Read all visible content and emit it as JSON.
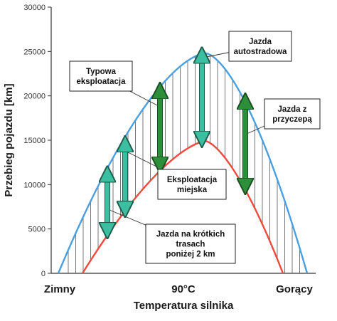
{
  "chart_data": {
    "type": "line",
    "ylabel": "Przebieg pojazdu [km]",
    "xlabel": "Temperatura silnika",
    "ylim": [
      0,
      30000
    ],
    "yticks": [
      0,
      5000,
      10000,
      15000,
      20000,
      25000,
      30000
    ],
    "xticks": [
      "Zimny",
      "90°C",
      "Gorący"
    ],
    "grid": false,
    "series": [
      {
        "color": "#4a9fe0",
        "peak": 24800
      },
      {
        "color": "#f04a3c",
        "peak": 14900
      }
    ],
    "arrows": [
      {
        "low": 4800,
        "high": 11200,
        "color": "#3bbfa0"
      },
      {
        "low": 7200,
        "high": 14600,
        "color": "#3bbfa0"
      },
      {
        "low": 12200,
        "high": 20600,
        "color": "#2e8f3a"
      },
      {
        "low": 15100,
        "high": 24600,
        "color": "#3bbfa0"
      },
      {
        "low": 9800,
        "high": 19400,
        "color": "#2e8f3a"
      }
    ],
    "annotations": [
      {
        "lines": [
          "Typowa",
          "eksploatacja"
        ]
      },
      {
        "lines": [
          "Jazda",
          "autostradowa"
        ]
      },
      {
        "lines": [
          "Jazda z",
          "przyczepą"
        ]
      },
      {
        "lines": [
          "Eksploatacja",
          "miejska"
        ]
      },
      {
        "lines": [
          "Jazda na krótkich",
          "trasach",
          "poniżej 2 km"
        ]
      }
    ]
  }
}
